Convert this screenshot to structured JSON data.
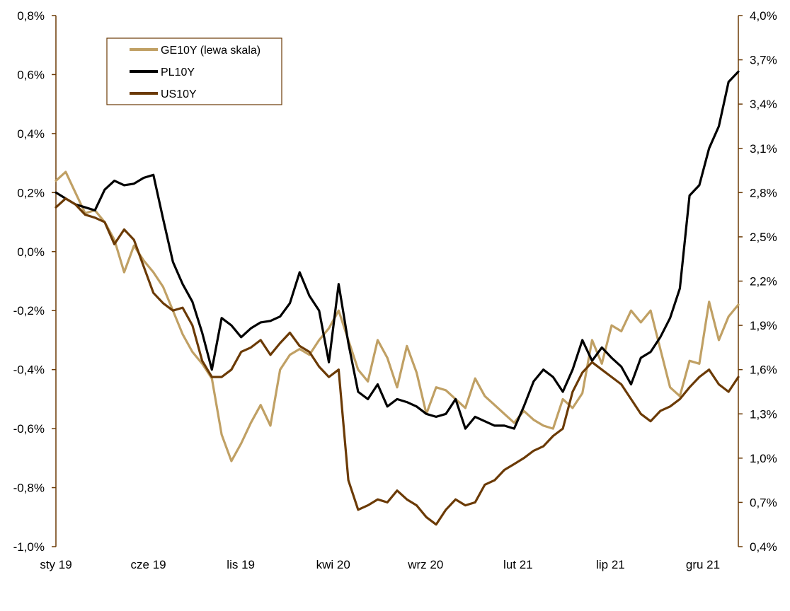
{
  "chart_data": {
    "type": "line",
    "title": "",
    "xlabel": "",
    "ylabel": "",
    "x_ticks": [
      "sty 19",
      "cze 19",
      "lis 19",
      "kwi 20",
      "wrz 20",
      "lut 21",
      "lip 21",
      "gru 21"
    ],
    "y_left": {
      "lim": [
        -1.0,
        0.8
      ],
      "ticks": [
        -1.0,
        -0.8,
        -0.6,
        -0.4,
        -0.2,
        0.0,
        0.2,
        0.4,
        0.6,
        0.8
      ],
      "tick_labels": [
        "-1,0%",
        "-0,8%",
        "-0,6%",
        "-0,4%",
        "-0,2%",
        "0,0%",
        "0,2%",
        "0,4%",
        "0,6%",
        "0,8%"
      ]
    },
    "y_right": {
      "lim": [
        0.4,
        4.0
      ],
      "ticks": [
        0.4,
        0.7,
        1.0,
        1.3,
        1.6,
        1.9,
        2.2,
        2.5,
        2.8,
        3.1,
        3.4,
        3.7,
        4.0
      ],
      "tick_labels": [
        "0,4%",
        "0,7%",
        "1,0%",
        "1,3%",
        "1,6%",
        "1,9%",
        "2,2%",
        "2,5%",
        "2,8%",
        "3,1%",
        "3,4%",
        "3,7%",
        "4,0%"
      ]
    },
    "legend_position": "top-left",
    "series": [
      {
        "name": "GE10Y (lewa skala)",
        "axis": "left",
        "color": "#C0A064",
        "x": [
          0,
          0.5,
          1,
          1.5,
          2,
          2.5,
          3,
          3.5,
          4,
          4.5,
          5,
          5.5,
          6,
          6.5,
          7,
          7.5,
          8,
          8.5,
          9,
          9.5,
          10,
          10.5,
          11,
          11.5,
          12,
          12.5,
          13,
          13.5,
          14,
          14.5,
          15,
          15.5,
          16,
          16.5,
          17,
          17.5,
          18,
          18.5,
          19,
          19.5,
          20,
          20.5,
          21,
          21.5,
          22,
          22.5,
          23,
          23.5,
          24,
          24.5,
          25,
          25.5,
          26,
          26.5,
          27,
          27.5,
          28,
          28.5,
          29,
          29.5,
          30,
          30.5,
          31,
          31.5,
          32,
          32.5,
          33,
          33.5,
          34,
          34.5,
          35
        ],
        "y": [
          0.24,
          0.27,
          0.2,
          0.13,
          0.14,
          0.1,
          0.04,
          -0.07,
          0.02,
          -0.03,
          -0.07,
          -0.12,
          -0.2,
          -0.28,
          -0.34,
          -0.38,
          -0.43,
          -0.62,
          -0.71,
          -0.65,
          -0.58,
          -0.52,
          -0.59,
          -0.4,
          -0.35,
          -0.33,
          -0.35,
          -0.3,
          -0.26,
          -0.2,
          -0.3,
          -0.4,
          -0.44,
          -0.3,
          -0.36,
          -0.46,
          -0.32,
          -0.41,
          -0.55,
          -0.46,
          -0.47,
          -0.5,
          -0.53,
          -0.43,
          -0.49,
          -0.52,
          -0.55,
          -0.58,
          -0.54,
          -0.57,
          -0.59,
          -0.6,
          -0.5,
          -0.53,
          -0.48,
          -0.3,
          -0.38,
          -0.25,
          -0.27,
          -0.2,
          -0.24,
          -0.2,
          -0.33,
          -0.46,
          -0.49,
          -0.37,
          -0.38,
          -0.17,
          -0.3,
          -0.22,
          -0.18
        ]
      },
      {
        "name": "PL10Y",
        "axis": "right",
        "color": "#000000",
        "x": [
          0,
          0.5,
          1,
          1.5,
          2,
          2.5,
          3,
          3.5,
          4,
          4.5,
          5,
          5.5,
          6,
          6.5,
          7,
          7.5,
          8,
          8.5,
          9,
          9.5,
          10,
          10.5,
          11,
          11.5,
          12,
          12.5,
          13,
          13.5,
          14,
          14.5,
          15,
          15.5,
          16,
          16.5,
          17,
          17.5,
          18,
          18.5,
          19,
          19.5,
          20,
          20.5,
          21,
          21.5,
          22,
          22.5,
          23,
          23.5,
          24,
          24.5,
          25,
          25.5,
          26,
          26.5,
          27,
          27.5,
          28,
          28.5,
          29,
          29.5,
          30,
          30.5,
          31,
          31.5,
          32,
          32.5,
          33,
          33.5,
          34,
          34.5,
          35
        ],
        "y": [
          2.8,
          2.76,
          2.72,
          2.7,
          2.68,
          2.82,
          2.88,
          2.85,
          2.86,
          2.9,
          2.92,
          2.62,
          2.33,
          2.18,
          2.06,
          1.85,
          1.6,
          1.95,
          1.9,
          1.82,
          1.88,
          1.92,
          1.93,
          1.96,
          2.05,
          2.26,
          2.1,
          2.0,
          1.65,
          2.18,
          1.78,
          1.45,
          1.4,
          1.5,
          1.35,
          1.4,
          1.38,
          1.35,
          1.3,
          1.28,
          1.3,
          1.4,
          1.2,
          1.28,
          1.25,
          1.22,
          1.22,
          1.2,
          1.35,
          1.52,
          1.6,
          1.55,
          1.45,
          1.6,
          1.8,
          1.66,
          1.75,
          1.68,
          1.62,
          1.5,
          1.68,
          1.72,
          1.82,
          1.95,
          2.15,
          2.78,
          2.85,
          3.1,
          3.25,
          3.55,
          3.62
        ]
      },
      {
        "name": "US10Y",
        "axis": "right",
        "color": "#6B3A05",
        "x": [
          0,
          0.5,
          1,
          1.5,
          2,
          2.5,
          3,
          3.5,
          4,
          4.5,
          5,
          5.5,
          6,
          6.5,
          7,
          7.5,
          8,
          8.5,
          9,
          9.5,
          10,
          10.5,
          11,
          11.5,
          12,
          12.5,
          13,
          13.5,
          14,
          14.5,
          15,
          15.5,
          16,
          16.5,
          17,
          17.5,
          18,
          18.5,
          19,
          19.5,
          20,
          20.5,
          21,
          21.5,
          22,
          22.5,
          23,
          23.5,
          24,
          24.5,
          25,
          25.5,
          26,
          26.5,
          27,
          27.5,
          28,
          28.5,
          29,
          29.5,
          30,
          30.5,
          31,
          31.5,
          32,
          32.5,
          33,
          33.5,
          34,
          34.5,
          35
        ],
        "y": [
          2.7,
          2.76,
          2.72,
          2.65,
          2.63,
          2.6,
          2.45,
          2.55,
          2.48,
          2.3,
          2.12,
          2.05,
          2.0,
          2.02,
          1.9,
          1.66,
          1.55,
          1.55,
          1.6,
          1.72,
          1.75,
          1.8,
          1.7,
          1.78,
          1.85,
          1.76,
          1.72,
          1.62,
          1.55,
          1.6,
          0.85,
          0.65,
          0.68,
          0.72,
          0.7,
          0.78,
          0.72,
          0.68,
          0.6,
          0.55,
          0.65,
          0.72,
          0.68,
          0.7,
          0.82,
          0.85,
          0.92,
          0.96,
          1.0,
          1.05,
          1.08,
          1.15,
          1.2,
          1.45,
          1.58,
          1.65,
          1.6,
          1.55,
          1.5,
          1.4,
          1.3,
          1.25,
          1.32,
          1.35,
          1.4,
          1.48,
          1.55,
          1.6,
          1.5,
          1.45,
          1.55
        ]
      }
    ]
  }
}
